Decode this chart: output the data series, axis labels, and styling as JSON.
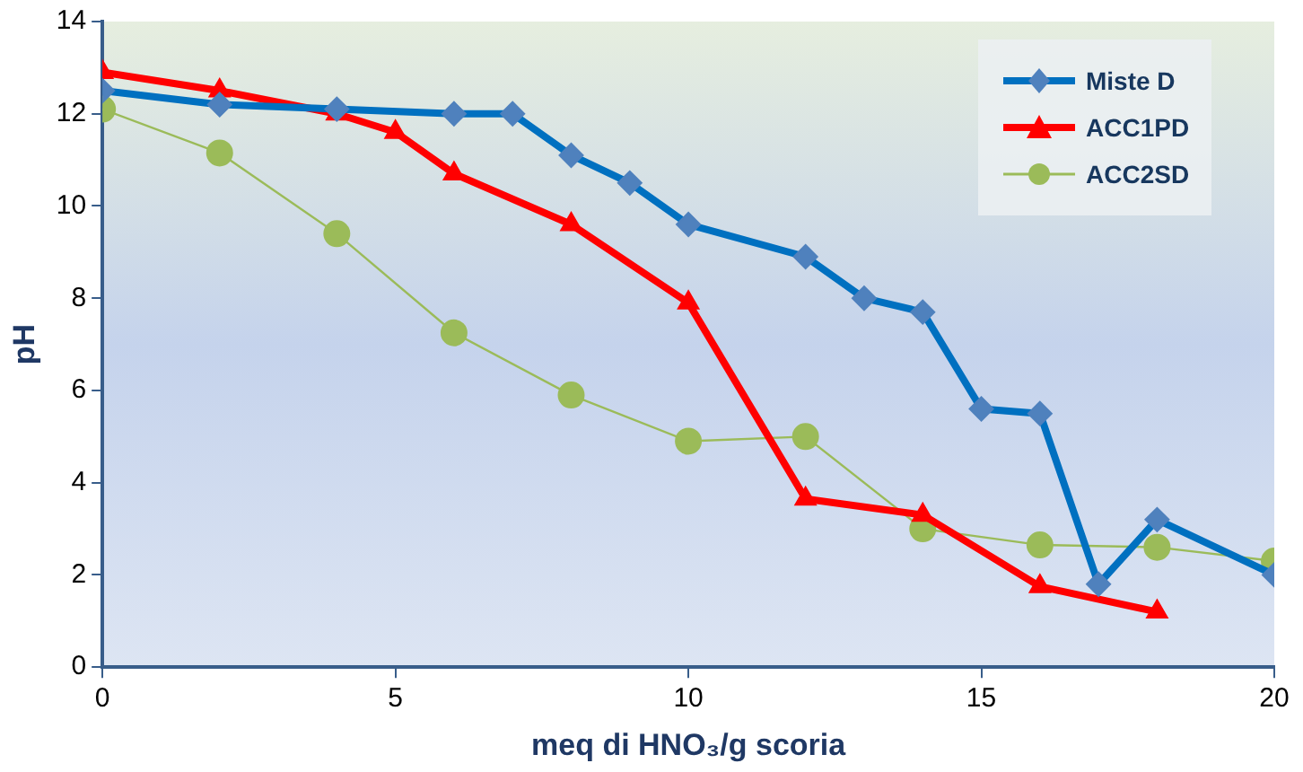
{
  "chart_data": {
    "type": "line",
    "xlabel": "meq di HNO₃/g scoria",
    "ylabel": "pH",
    "xlim": [
      0,
      20
    ],
    "xticks": [
      0,
      5,
      10,
      15,
      20
    ],
    "ylim": [
      0,
      14
    ],
    "yticks": [
      0,
      2,
      4,
      6,
      8,
      10,
      12,
      14
    ],
    "grid": false,
    "legend": "top right",
    "series": [
      {
        "name": "Miste D",
        "color": "#0070c0",
        "marker": "diamond",
        "x": [
          0,
          2,
          4,
          6,
          7,
          8,
          9,
          10,
          12,
          13,
          14,
          15,
          16,
          17,
          18,
          20
        ],
        "values": [
          12.5,
          12.2,
          12.1,
          12.0,
          12.0,
          11.1,
          10.5,
          9.6,
          8.9,
          8.0,
          7.7,
          5.6,
          5.5,
          1.8,
          3.2,
          2.0
        ]
      },
      {
        "name": "ACC1PD",
        "color": "#ff0000",
        "marker": "triangle",
        "x": [
          0,
          2,
          4,
          5,
          6,
          8,
          10,
          12,
          14,
          16,
          18
        ],
        "values": [
          12.9,
          12.5,
          12.0,
          11.6,
          10.7,
          9.6,
          7.9,
          3.65,
          3.3,
          1.75,
          1.2
        ]
      },
      {
        "name": "ACC2SD",
        "color": "#9bbb59",
        "marker": "circle",
        "x": [
          0,
          2,
          4,
          6,
          8,
          10,
          12,
          14,
          16,
          18,
          20
        ],
        "values": [
          12.1,
          11.15,
          9.4,
          7.25,
          5.9,
          4.9,
          5.0,
          3.0,
          2.65,
          2.6,
          2.3
        ]
      }
    ]
  }
}
